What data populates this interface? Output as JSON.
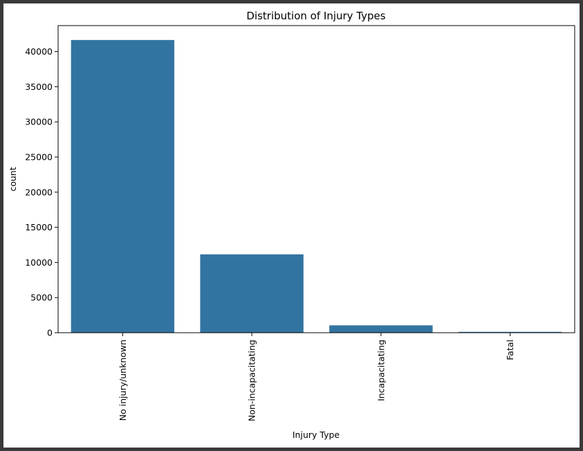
{
  "chart_data": {
    "type": "bar",
    "title": "Distribution of Injury Types",
    "xlabel": "Injury Type",
    "ylabel": "count",
    "categories": [
      "No injury/unknown",
      "Non-incapacitating",
      "Incapacitating",
      "Fatal"
    ],
    "values": [
      41650,
      11150,
      1050,
      120
    ],
    "ylim": [
      0,
      43700
    ],
    "yticks": [
      0,
      5000,
      10000,
      15000,
      20000,
      25000,
      30000,
      35000,
      40000
    ],
    "ytick_labels": [
      "0",
      "5000",
      "10000",
      "15000",
      "20000",
      "25000",
      "30000",
      "35000",
      "40000"
    ],
    "bar_color": "#3274a1",
    "grid": false,
    "xtick_rotation": "vertical"
  }
}
